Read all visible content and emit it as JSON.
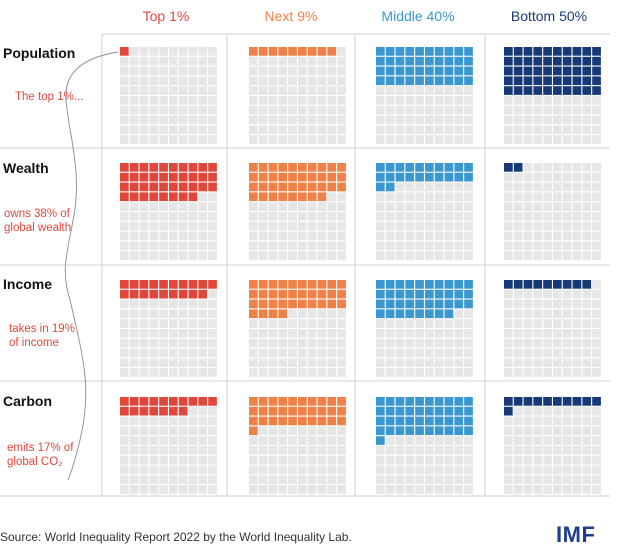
{
  "columns": [
    {
      "label": "Top 1%",
      "color": "#e0473a"
    },
    {
      "label": "Next 9%",
      "color": "#ef8148"
    },
    {
      "label": "Middle 40%",
      "color": "#3a97d0"
    },
    {
      "label": "Bottom 50%",
      "color": "#173a76"
    }
  ],
  "rows": [
    {
      "label": "Population",
      "note": [
        "The top 1%..."
      ]
    },
    {
      "label": "Wealth",
      "note": [
        "owns 38% of",
        "global wealth"
      ]
    },
    {
      "label": "Income",
      "note": [
        "takes in 19%",
        "of income"
      ]
    },
    {
      "label": "Carbon",
      "note": [
        "emits 17% of",
        "global CO₂"
      ]
    }
  ],
  "chart_data": {
    "type": "waffle",
    "grid": {
      "rows": 10,
      "cols": 10
    },
    "empty_color": "#e6e6e6",
    "categories": [
      "Top 1%",
      "Next 9%",
      "Middle 40%",
      "Bottom 50%"
    ],
    "series": [
      {
        "name": "Population",
        "values": [
          1,
          9,
          40,
          50
        ]
      },
      {
        "name": "Wealth",
        "values": [
          38,
          38,
          22,
          2
        ]
      },
      {
        "name": "Income",
        "values": [
          19,
          34,
          38,
          9
        ]
      },
      {
        "name": "Carbon",
        "values": [
          17,
          31,
          41,
          11
        ]
      }
    ]
  },
  "source": "Source: World Inequality Report 2022 by the World Inequality Lab.",
  "logo_text": "IMF"
}
